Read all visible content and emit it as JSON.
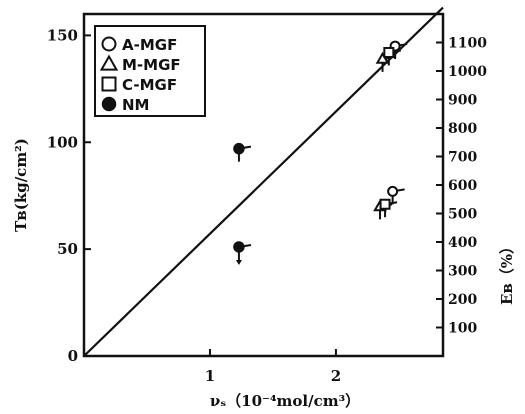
{
  "chart_data": {
    "type": "scatter",
    "xlabel": "νₛ（10⁻⁴mol/cm³）",
    "ylabel_left": "Tʙ(kg/cm²)",
    "ylabel_right": "Eʙ（%）",
    "xlim": [
      0,
      2.85
    ],
    "ylim_left": [
      0,
      160
    ],
    "ylim_right": [
      0,
      1200
    ],
    "x_ticks": [
      1,
      2
    ],
    "x_tick_labels": [
      "1",
      "2"
    ],
    "y_ticks_left": [
      0,
      50,
      100,
      150
    ],
    "y_tick_labels_left": [
      "0",
      "50",
      "100",
      "150"
    ],
    "y_ticks_right": [
      100,
      200,
      300,
      400,
      500,
      600,
      700,
      800,
      900,
      1000,
      1100
    ],
    "y_tick_labels_right": [
      "100",
      "200",
      "300",
      "400",
      "500",
      "600",
      "700",
      "800",
      "900",
      "1000",
      "1100"
    ],
    "legend": {
      "position": "top-left",
      "entries": [
        {
          "label": "A-MGF",
          "marker": "open-circle"
        },
        {
          "label": "M-MGF",
          "marker": "open-triangle"
        },
        {
          "label": "C-MGF",
          "marker": "open-square"
        },
        {
          "label": "NM",
          "marker": "filled-circle"
        }
      ]
    },
    "reference_line": {
      "x": [
        0,
        2.85
      ],
      "y": [
        0,
        163
      ]
    },
    "series": [
      {
        "name": "NM",
        "marker": "filled-circle",
        "points": [
          {
            "x": 1.23,
            "y": 97,
            "pin": "down"
          },
          {
            "x": 1.23,
            "y": 51,
            "pin": "down",
            "arrow": "down"
          }
        ]
      },
      {
        "name": "A-MGF",
        "marker": "open-circle",
        "points": [
          {
            "x": 2.47,
            "y": 145,
            "pin": "down"
          },
          {
            "x": 2.45,
            "y": 77,
            "pin": "down"
          }
        ]
      },
      {
        "name": "M-MGF",
        "marker": "open-triangle",
        "points": [
          {
            "x": 2.37,
            "y": 139,
            "pin": "down"
          },
          {
            "x": 2.35,
            "y": 70,
            "pin": "down"
          }
        ]
      },
      {
        "name": "C-MGF",
        "marker": "open-square",
        "points": [
          {
            "x": 2.42,
            "y": 142,
            "pin": "down"
          },
          {
            "x": 2.39,
            "y": 71,
            "pin": "down"
          }
        ]
      }
    ]
  }
}
